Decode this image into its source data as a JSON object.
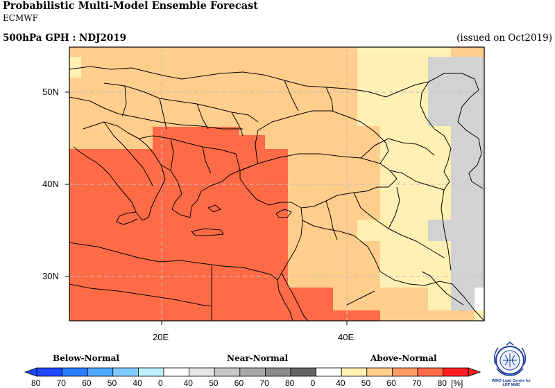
{
  "header": {
    "title": "Probabilistic Multi-Model Ensemble Forecast",
    "model": "ECMWF",
    "left_title": "500hPa GPH : NDJ2019",
    "issued": "(issued on Oct2019)"
  },
  "map_axes": {
    "lat_labels": [
      "50N",
      "40N",
      "30N"
    ],
    "lon_labels": [
      "20E",
      "40E"
    ]
  },
  "legend": {
    "categories": [
      "Below-Normal",
      "Near-Normal",
      "Above-Normal"
    ],
    "tick_labels": [
      "80",
      "70",
      "60",
      "50",
      "40",
      "0",
      "40",
      "50",
      "60",
      "70",
      "80",
      "0",
      "40",
      "50",
      "60",
      "70",
      "80"
    ],
    "unit": "[%]",
    "colors": {
      "below": [
        "#1e46ff",
        "#2b7cff",
        "#4fa7ff",
        "#80ccff",
        "#bff0ff"
      ],
      "gap": "#ffffff",
      "near": [
        "#e6e6e6",
        "#c8c8c8",
        "#aaaaaa",
        "#8c8c8c",
        "#646464"
      ],
      "above": [
        "#fff0b4",
        "#ffcd8c",
        "#ff9b64",
        "#ff6b46",
        "#ff1e1e"
      ]
    }
  },
  "logo_text": {
    "line1": "WMO Lead Centre for",
    "line2": "LRF MME"
  }
}
